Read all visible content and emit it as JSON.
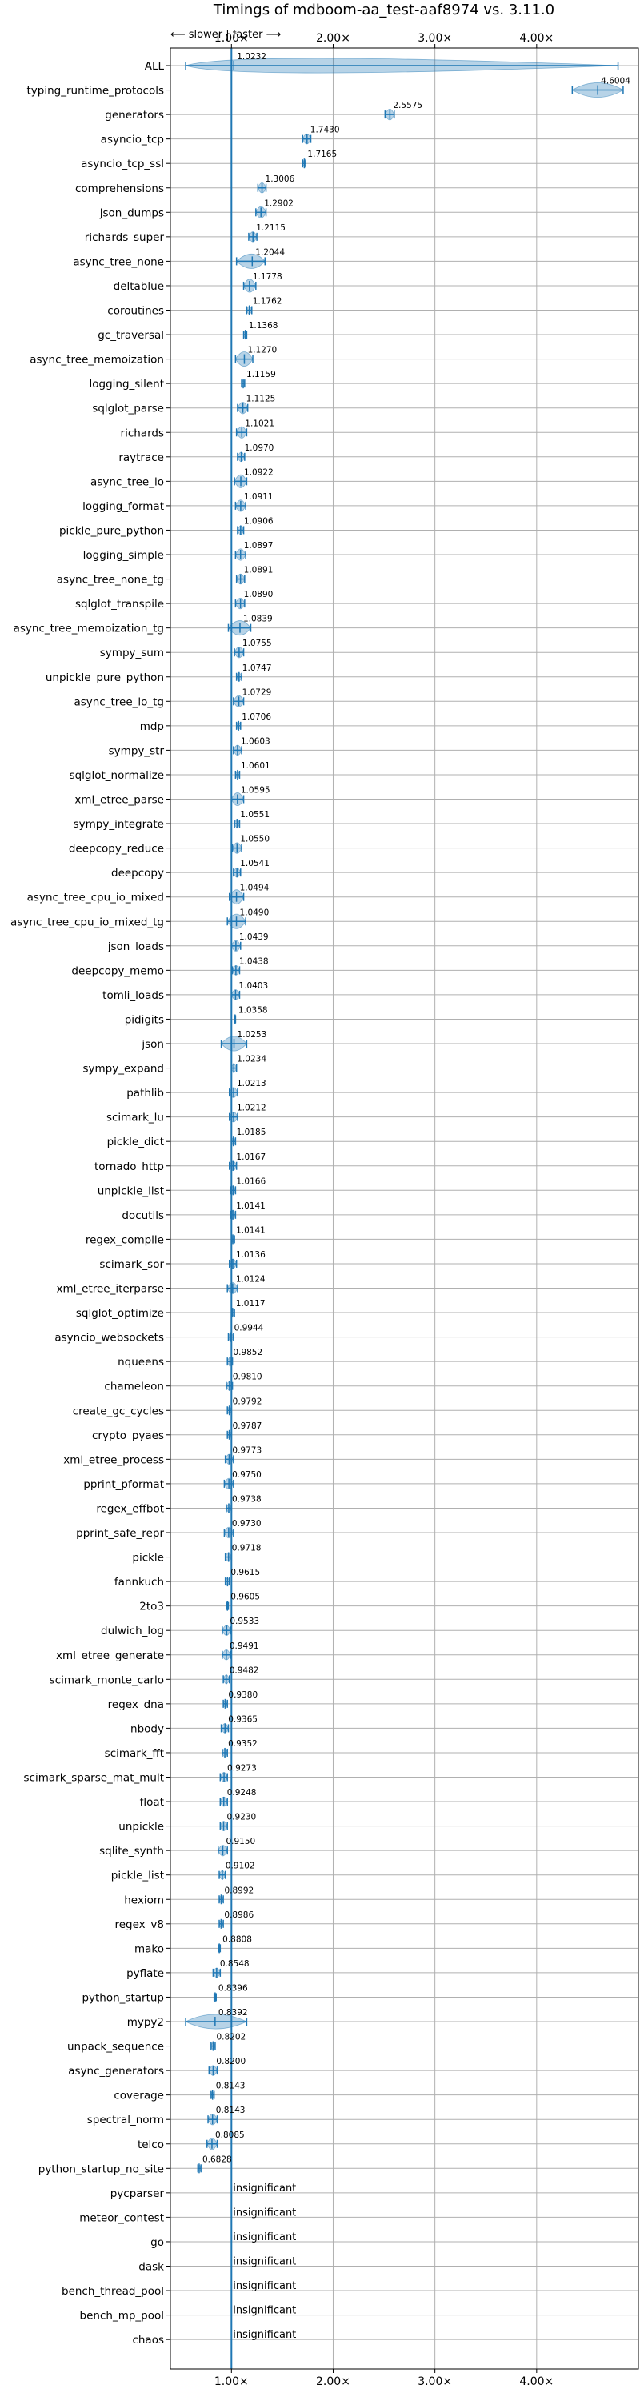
{
  "chart_data": {
    "type": "violin",
    "title": "Timings of mdboom-aa_test-aaf8974 vs. 3.11.0",
    "direction_label": "⟵ slower | faster ⟶",
    "xlim": [
      0.4,
      5.0
    ],
    "xticks": [
      1,
      2,
      3,
      4
    ],
    "xtick_labels": [
      "1.00×",
      "2.00×",
      "3.00×",
      "4.00×"
    ],
    "baseline": 1.0,
    "grid": true,
    "insignificant_label": "insignificant",
    "benchmarks": [
      {
        "name": "ALL",
        "value": 1.0232,
        "label": "1.0232",
        "min": 0.55,
        "max": 4.8
      },
      {
        "name": "typing_runtime_protocols",
        "value": 4.6004,
        "label": "4.6004",
        "min": 4.35,
        "max": 4.85
      },
      {
        "name": "generators",
        "value": 2.5575,
        "label": "2.5575",
        "min": 2.51,
        "max": 2.6
      },
      {
        "name": "asyncio_tcp",
        "value": 1.743,
        "label": "1.7430",
        "min": 1.7,
        "max": 1.78
      },
      {
        "name": "asyncio_tcp_ssl",
        "value": 1.7165,
        "label": "1.7165",
        "min": 1.7,
        "max": 1.73
      },
      {
        "name": "comprehensions",
        "value": 1.3006,
        "label": "1.3006",
        "min": 1.26,
        "max": 1.34
      },
      {
        "name": "json_dumps",
        "value": 1.2902,
        "label": "1.2902",
        "min": 1.24,
        "max": 1.34
      },
      {
        "name": "richards_super",
        "value": 1.2115,
        "label": "1.2115",
        "min": 1.17,
        "max": 1.25
      },
      {
        "name": "async_tree_none",
        "value": 1.2044,
        "label": "1.2044",
        "min": 1.05,
        "max": 1.33
      },
      {
        "name": "deltablue",
        "value": 1.1778,
        "label": "1.1778",
        "min": 1.12,
        "max": 1.24
      },
      {
        "name": "coroutines",
        "value": 1.1762,
        "label": "1.1762",
        "min": 1.15,
        "max": 1.2
      },
      {
        "name": "gc_traversal",
        "value": 1.1368,
        "label": "1.1368",
        "min": 1.12,
        "max": 1.15
      },
      {
        "name": "async_tree_memoization",
        "value": 1.127,
        "label": "1.1270",
        "min": 1.04,
        "max": 1.21
      },
      {
        "name": "logging_silent",
        "value": 1.1159,
        "label": "1.1159",
        "min": 1.1,
        "max": 1.13
      },
      {
        "name": "sqlglot_parse",
        "value": 1.1125,
        "label": "1.1125",
        "min": 1.06,
        "max": 1.16
      },
      {
        "name": "richards",
        "value": 1.1021,
        "label": "1.1021",
        "min": 1.05,
        "max": 1.15
      },
      {
        "name": "raytrace",
        "value": 1.097,
        "label": "1.0970",
        "min": 1.06,
        "max": 1.13
      },
      {
        "name": "async_tree_io",
        "value": 1.0922,
        "label": "1.0922",
        "min": 1.03,
        "max": 1.15
      },
      {
        "name": "logging_format",
        "value": 1.0911,
        "label": "1.0911",
        "min": 1.04,
        "max": 1.14
      },
      {
        "name": "pickle_pure_python",
        "value": 1.0906,
        "label": "1.0906",
        "min": 1.06,
        "max": 1.12
      },
      {
        "name": "logging_simple",
        "value": 1.0897,
        "label": "1.0897",
        "min": 1.04,
        "max": 1.14
      },
      {
        "name": "async_tree_none_tg",
        "value": 1.0891,
        "label": "1.0891",
        "min": 1.05,
        "max": 1.13
      },
      {
        "name": "sqlglot_transpile",
        "value": 1.089,
        "label": "1.0890",
        "min": 1.04,
        "max": 1.13
      },
      {
        "name": "async_tree_memoization_tg",
        "value": 1.0839,
        "label": "1.0839",
        "min": 0.97,
        "max": 1.19
      },
      {
        "name": "sympy_sum",
        "value": 1.0755,
        "label": "1.0755",
        "min": 1.03,
        "max": 1.12
      },
      {
        "name": "unpickle_pure_python",
        "value": 1.0747,
        "label": "1.0747",
        "min": 1.05,
        "max": 1.1
      },
      {
        "name": "async_tree_io_tg",
        "value": 1.0729,
        "label": "1.0729",
        "min": 1.02,
        "max": 1.12
      },
      {
        "name": "mdp",
        "value": 1.0706,
        "label": "1.0706",
        "min": 1.05,
        "max": 1.09
      },
      {
        "name": "sympy_str",
        "value": 1.0603,
        "label": "1.0603",
        "min": 1.02,
        "max": 1.1
      },
      {
        "name": "sqlglot_normalize",
        "value": 1.0601,
        "label": "1.0601",
        "min": 1.04,
        "max": 1.08
      },
      {
        "name": "xml_etree_parse",
        "value": 1.0595,
        "label": "1.0595",
        "min": 1.0,
        "max": 1.12
      },
      {
        "name": "sympy_integrate",
        "value": 1.0551,
        "label": "1.0551",
        "min": 1.03,
        "max": 1.08
      },
      {
        "name": "deepcopy_reduce",
        "value": 1.055,
        "label": "1.0550",
        "min": 1.01,
        "max": 1.1
      },
      {
        "name": "deepcopy",
        "value": 1.0541,
        "label": "1.0541",
        "min": 1.02,
        "max": 1.09
      },
      {
        "name": "async_tree_cpu_io_mixed",
        "value": 1.0494,
        "label": "1.0494",
        "min": 0.98,
        "max": 1.12
      },
      {
        "name": "async_tree_cpu_io_mixed_tg",
        "value": 1.049,
        "label": "1.0490",
        "min": 0.96,
        "max": 1.14
      },
      {
        "name": "json_loads",
        "value": 1.0439,
        "label": "1.0439",
        "min": 1.0,
        "max": 1.09
      },
      {
        "name": "deepcopy_memo",
        "value": 1.0438,
        "label": "1.0438",
        "min": 1.01,
        "max": 1.08
      },
      {
        "name": "tomli_loads",
        "value": 1.0403,
        "label": "1.0403",
        "min": 1.0,
        "max": 1.08
      },
      {
        "name": "pidigits",
        "value": 1.0358,
        "label": "1.0358",
        "min": 1.03,
        "max": 1.04
      },
      {
        "name": "json",
        "value": 1.0253,
        "label": "1.0253",
        "min": 0.9,
        "max": 1.15
      },
      {
        "name": "sympy_expand",
        "value": 1.0234,
        "label": "1.0234",
        "min": 1.0,
        "max": 1.05
      },
      {
        "name": "pathlib",
        "value": 1.0213,
        "label": "1.0213",
        "min": 0.98,
        "max": 1.06
      },
      {
        "name": "scimark_lu",
        "value": 1.0212,
        "label": "1.0212",
        "min": 0.98,
        "max": 1.06
      },
      {
        "name": "pickle_dict",
        "value": 1.0185,
        "label": "1.0185",
        "min": 1.0,
        "max": 1.04
      },
      {
        "name": "tornado_http",
        "value": 1.0167,
        "label": "1.0167",
        "min": 0.98,
        "max": 1.05
      },
      {
        "name": "unpickle_list",
        "value": 1.0166,
        "label": "1.0166",
        "min": 0.99,
        "max": 1.04
      },
      {
        "name": "docutils",
        "value": 1.0141,
        "label": "1.0141",
        "min": 0.99,
        "max": 1.04
      },
      {
        "name": "regex_compile",
        "value": 1.0141,
        "label": "1.0141",
        "min": 1.0,
        "max": 1.03
      },
      {
        "name": "scimark_sor",
        "value": 1.0136,
        "label": "1.0136",
        "min": 0.98,
        "max": 1.05
      },
      {
        "name": "xml_etree_iterparse",
        "value": 1.0124,
        "label": "1.0124",
        "min": 0.96,
        "max": 1.06
      },
      {
        "name": "sqlglot_optimize",
        "value": 1.0117,
        "label": "1.0117",
        "min": 1.0,
        "max": 1.03
      },
      {
        "name": "asyncio_websockets",
        "value": 0.9944,
        "label": "0.9944",
        "min": 0.97,
        "max": 1.02
      },
      {
        "name": "nqueens",
        "value": 0.9852,
        "label": "0.9852",
        "min": 0.96,
        "max": 1.01
      },
      {
        "name": "chameleon",
        "value": 0.981,
        "label": "0.9810",
        "min": 0.95,
        "max": 1.01
      },
      {
        "name": "create_gc_cycles",
        "value": 0.9792,
        "label": "0.9792",
        "min": 0.96,
        "max": 1.0
      },
      {
        "name": "crypto_pyaes",
        "value": 0.9787,
        "label": "0.9787",
        "min": 0.96,
        "max": 1.0
      },
      {
        "name": "xml_etree_process",
        "value": 0.9773,
        "label": "0.9773",
        "min": 0.94,
        "max": 1.02
      },
      {
        "name": "pprint_pformat",
        "value": 0.975,
        "label": "0.9750",
        "min": 0.93,
        "max": 1.02
      },
      {
        "name": "regex_effbot",
        "value": 0.9738,
        "label": "0.9738",
        "min": 0.95,
        "max": 1.0
      },
      {
        "name": "pprint_safe_repr",
        "value": 0.973,
        "label": "0.9730",
        "min": 0.93,
        "max": 1.02
      },
      {
        "name": "pickle",
        "value": 0.9718,
        "label": "0.9718",
        "min": 0.94,
        "max": 1.0
      },
      {
        "name": "fannkuch",
        "value": 0.9615,
        "label": "0.9615",
        "min": 0.94,
        "max": 0.98
      },
      {
        "name": "2to3",
        "value": 0.9605,
        "label": "0.9605",
        "min": 0.95,
        "max": 0.97
      },
      {
        "name": "dulwich_log",
        "value": 0.9533,
        "label": "0.9533",
        "min": 0.91,
        "max": 0.99
      },
      {
        "name": "xml_etree_generate",
        "value": 0.9491,
        "label": "0.9491",
        "min": 0.91,
        "max": 0.99
      },
      {
        "name": "scimark_monte_carlo",
        "value": 0.9482,
        "label": "0.9482",
        "min": 0.92,
        "max": 0.98
      },
      {
        "name": "regex_dna",
        "value": 0.938,
        "label": "0.9380",
        "min": 0.92,
        "max": 0.96
      },
      {
        "name": "nbody",
        "value": 0.9365,
        "label": "0.9365",
        "min": 0.9,
        "max": 0.97
      },
      {
        "name": "scimark_fft",
        "value": 0.9352,
        "label": "0.9352",
        "min": 0.91,
        "max": 0.96
      },
      {
        "name": "scimark_sparse_mat_mult",
        "value": 0.9273,
        "label": "0.9273",
        "min": 0.89,
        "max": 0.96
      },
      {
        "name": "float",
        "value": 0.9248,
        "label": "0.9248",
        "min": 0.89,
        "max": 0.96
      },
      {
        "name": "unpickle",
        "value": 0.923,
        "label": "0.9230",
        "min": 0.89,
        "max": 0.96
      },
      {
        "name": "sqlite_synth",
        "value": 0.915,
        "label": "0.9150",
        "min": 0.87,
        "max": 0.96
      },
      {
        "name": "pickle_list",
        "value": 0.9102,
        "label": "0.9102",
        "min": 0.88,
        "max": 0.94
      },
      {
        "name": "hexiom",
        "value": 0.8992,
        "label": "0.8992",
        "min": 0.88,
        "max": 0.92
      },
      {
        "name": "regex_v8",
        "value": 0.8986,
        "label": "0.8986",
        "min": 0.88,
        "max": 0.92
      },
      {
        "name": "mako",
        "value": 0.8808,
        "label": "0.8808",
        "min": 0.87,
        "max": 0.89
      },
      {
        "name": "pyflate",
        "value": 0.8548,
        "label": "0.8548",
        "min": 0.82,
        "max": 0.89
      },
      {
        "name": "python_startup",
        "value": 0.8396,
        "label": "0.8396",
        "min": 0.83,
        "max": 0.85
      },
      {
        "name": "mypy2",
        "value": 0.8392,
        "label": "0.8392",
        "min": 0.55,
        "max": 1.15
      },
      {
        "name": "unpack_sequence",
        "value": 0.8202,
        "label": "0.8202",
        "min": 0.8,
        "max": 0.84
      },
      {
        "name": "async_generators",
        "value": 0.82,
        "label": "0.8200",
        "min": 0.78,
        "max": 0.86
      },
      {
        "name": "coverage",
        "value": 0.8143,
        "label": "0.8143",
        "min": 0.8,
        "max": 0.83
      },
      {
        "name": "spectral_norm",
        "value": 0.8143,
        "label": "0.8143",
        "min": 0.77,
        "max": 0.86
      },
      {
        "name": "telco",
        "value": 0.8085,
        "label": "0.8085",
        "min": 0.76,
        "max": 0.86
      },
      {
        "name": "python_startup_no_site",
        "value": 0.6828,
        "label": "0.6828",
        "min": 0.67,
        "max": 0.7
      },
      {
        "name": "pycparser",
        "value": null,
        "label": ""
      },
      {
        "name": "meteor_contest",
        "value": null,
        "label": ""
      },
      {
        "name": "go",
        "value": null,
        "label": ""
      },
      {
        "name": "dask",
        "value": null,
        "label": ""
      },
      {
        "name": "bench_thread_pool",
        "value": null,
        "label": ""
      },
      {
        "name": "bench_mp_pool",
        "value": null,
        "label": ""
      },
      {
        "name": "chaos",
        "value": null,
        "label": ""
      }
    ]
  }
}
